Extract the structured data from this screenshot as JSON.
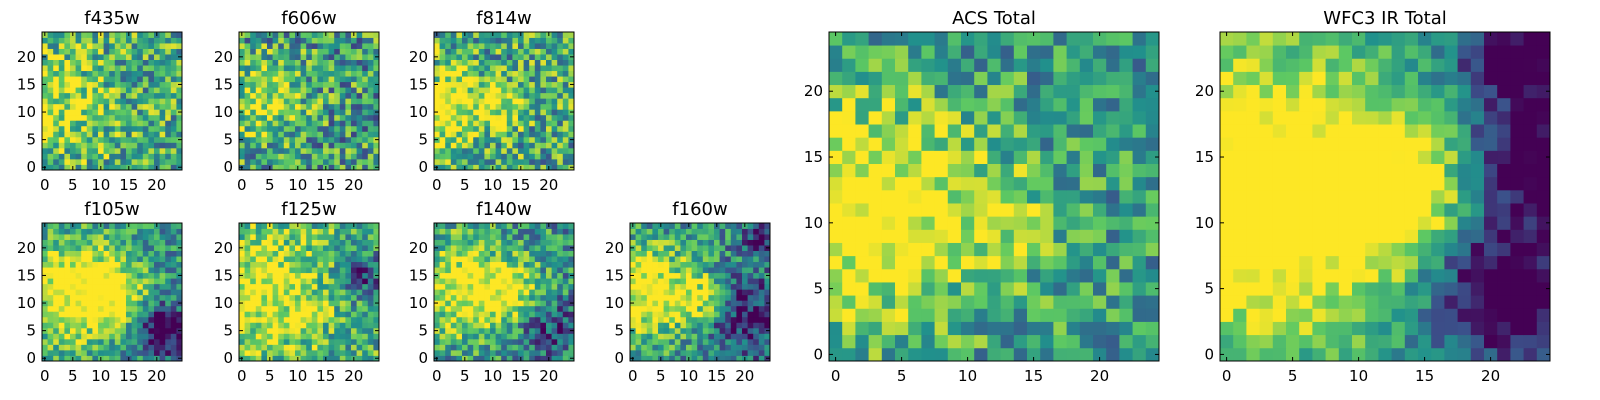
{
  "figure": {
    "colormap": "viridis",
    "colors": [
      "#440154",
      "#3b528b",
      "#21918c",
      "#5ec962",
      "#fde725"
    ],
    "panel_count": 9
  },
  "chart_data": [
    {
      "type": "heatmap",
      "title": "f435w",
      "xlim": [
        -0.5,
        24.5
      ],
      "ylim": [
        -0.5,
        24.5
      ],
      "xticks": [
        0,
        5,
        10,
        15,
        20
      ],
      "yticks": [
        0,
        5,
        10,
        15,
        20
      ],
      "grid": false,
      "value_range": [
        0,
        1
      ],
      "seed": 11,
      "base": 0.62,
      "noise": 0.34,
      "bright_spots": [
        {
          "x": 3,
          "y": 11,
          "r": 6,
          "a": 0.15
        }
      ],
      "dark_spots": [],
      "note_values": "per-pixel intensities approximated (noisy image, unreadable individually)"
    },
    {
      "type": "heatmap",
      "title": "f606w",
      "xlim": [
        -0.5,
        24.5
      ],
      "ylim": [
        -0.5,
        24.5
      ],
      "xticks": [
        0,
        5,
        10,
        15,
        20
      ],
      "yticks": [
        0,
        5,
        10,
        15,
        20
      ],
      "grid": false,
      "value_range": [
        0,
        1
      ],
      "seed": 22,
      "base": 0.55,
      "noise": 0.36,
      "bright_spots": [
        {
          "x": 4,
          "y": 12,
          "r": 5,
          "a": 0.2
        }
      ],
      "dark_spots": []
    },
    {
      "type": "heatmap",
      "title": "f814w",
      "xlim": [
        -0.5,
        24.5
      ],
      "ylim": [
        -0.5,
        24.5
      ],
      "xticks": [
        0,
        5,
        10,
        15,
        20
      ],
      "yticks": [
        0,
        5,
        10,
        15,
        20
      ],
      "grid": false,
      "value_range": [
        0,
        1
      ],
      "seed": 33,
      "base": 0.6,
      "noise": 0.36,
      "bright_spots": [
        {
          "x": 2,
          "y": 11,
          "r": 5,
          "a": 0.25
        },
        {
          "x": 12,
          "y": 11,
          "r": 3,
          "a": 0.15
        }
      ],
      "dark_spots": []
    },
    {
      "type": "heatmap",
      "title": "f105w",
      "xlim": [
        -0.5,
        24.5
      ],
      "ylim": [
        -0.5,
        24.5
      ],
      "xticks": [
        0,
        5,
        10,
        15,
        20
      ],
      "yticks": [
        0,
        5,
        10,
        15,
        20
      ],
      "grid": false,
      "value_range": [
        0,
        1
      ],
      "seed": 44,
      "base": 0.5,
      "noise": 0.26,
      "bright_spots": [
        {
          "x": 5,
          "y": 12,
          "r": 7,
          "a": 0.28
        },
        {
          "x": 12,
          "y": 12,
          "r": 4,
          "a": 0.18
        }
      ],
      "dark_spots": [
        {
          "x": 21,
          "y": 5,
          "r": 3,
          "a": 0.35
        }
      ]
    },
    {
      "type": "heatmap",
      "title": "f125w",
      "xlim": [
        -0.5,
        24.5
      ],
      "ylim": [
        -0.5,
        24.5
      ],
      "xticks": [
        0,
        5,
        10,
        15,
        20
      ],
      "yticks": [
        0,
        5,
        10,
        15,
        20
      ],
      "grid": false,
      "value_range": [
        0,
        1
      ],
      "seed": 55,
      "base": 0.62,
      "noise": 0.3,
      "bright_spots": [
        {
          "x": 4,
          "y": 12,
          "r": 8,
          "a": 0.2
        }
      ],
      "dark_spots": [
        {
          "x": 22,
          "y": 15,
          "r": 3,
          "a": 0.2
        }
      ]
    },
    {
      "type": "heatmap",
      "title": "f140w",
      "xlim": [
        -0.5,
        24.5
      ],
      "ylim": [
        -0.5,
        24.5
      ],
      "xticks": [
        0,
        5,
        10,
        15,
        20
      ],
      "yticks": [
        0,
        5,
        10,
        15,
        20
      ],
      "grid": false,
      "value_range": [
        0,
        1
      ],
      "seed": 66,
      "base": 0.52,
      "noise": 0.3,
      "bright_spots": [
        {
          "x": 4,
          "y": 13,
          "r": 6,
          "a": 0.25
        },
        {
          "x": 13,
          "y": 12,
          "r": 4,
          "a": 0.2
        }
      ],
      "dark_spots": [
        {
          "x": 20,
          "y": 5,
          "r": 4,
          "a": 0.15
        }
      ]
    },
    {
      "type": "heatmap",
      "title": "f160w",
      "xlim": [
        -0.5,
        24.5
      ],
      "ylim": [
        -0.5,
        24.5
      ],
      "xticks": [
        0,
        5,
        10,
        15,
        20
      ],
      "yticks": [
        0,
        5,
        10,
        15,
        20
      ],
      "grid": false,
      "value_range": [
        0,
        1
      ],
      "seed": 77,
      "base": 0.48,
      "noise": 0.28,
      "bright_spots": [
        {
          "x": 3,
          "y": 12,
          "r": 6,
          "a": 0.3
        },
        {
          "x": 13,
          "y": 11,
          "r": 3,
          "a": 0.2
        }
      ],
      "dark_spots": [
        {
          "x": 20,
          "y": 8,
          "r": 5,
          "a": 0.2
        },
        {
          "x": 23,
          "y": 22,
          "r": 2,
          "a": 0.25
        }
      ]
    },
    {
      "type": "heatmap",
      "title": "ACS Total",
      "xlim": [
        -0.5,
        24.5
      ],
      "ylim": [
        -0.5,
        24.5
      ],
      "xticks": [
        0,
        5,
        10,
        15,
        20
      ],
      "yticks": [
        0,
        5,
        10,
        15,
        20
      ],
      "grid": false,
      "value_range": [
        0,
        1
      ],
      "seed": 88,
      "base": 0.55,
      "noise": 0.28,
      "bright_spots": [
        {
          "x": 2,
          "y": 11,
          "r": 6,
          "a": 0.3
        },
        {
          "x": 12,
          "y": 10,
          "r": 3,
          "a": 0.12
        }
      ],
      "dark_spots": []
    },
    {
      "type": "heatmap",
      "title": "WFC3 IR Total",
      "xlim": [
        -0.5,
        24.5
      ],
      "ylim": [
        -0.5,
        24.5
      ],
      "xticks": [
        0,
        5,
        10,
        15,
        20
      ],
      "yticks": [
        0,
        5,
        10,
        15,
        20
      ],
      "grid": false,
      "value_range": [
        0,
        1
      ],
      "seed": 99,
      "base": 0.48,
      "noise": 0.18,
      "bright_spots": [
        {
          "x": 2,
          "y": 12,
          "r": 8,
          "a": 0.4
        },
        {
          "x": 13,
          "y": 12,
          "r": 4,
          "a": 0.25
        }
      ],
      "dark_spots": [
        {
          "x": 21,
          "y": 5,
          "r": 4,
          "a": 0.35
        },
        {
          "x": 23,
          "y": 15,
          "r": 3,
          "a": 0.3
        },
        {
          "x": 22,
          "y": 23,
          "r": 3,
          "a": 0.3
        }
      ]
    }
  ]
}
